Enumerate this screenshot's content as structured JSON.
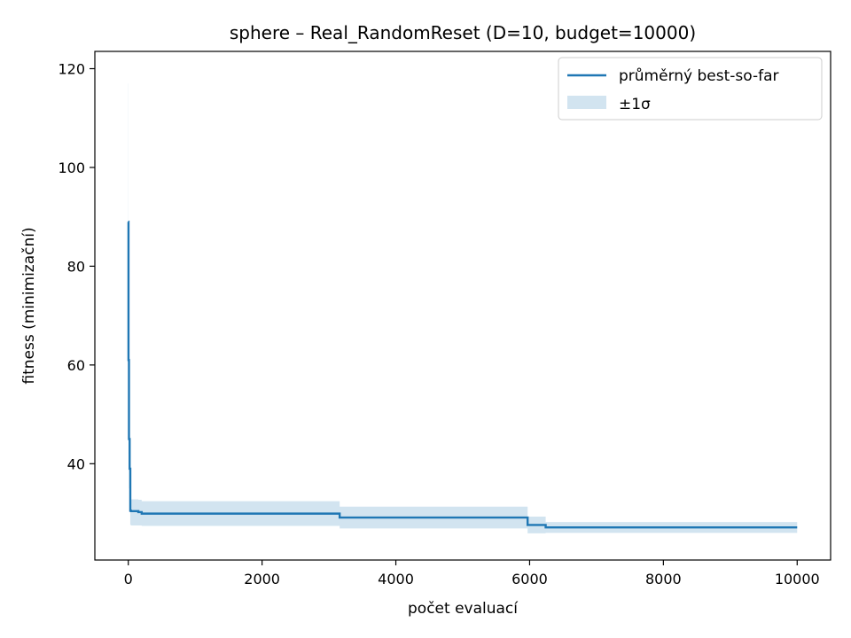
{
  "chart_data": {
    "type": "line",
    "title": "sphere – Real_RandomReset (D=10, budget=10000)",
    "xlabel": "počet evaluací",
    "ylabel": "fitness (minimizační)",
    "xlim": [
      -500,
      10500
    ],
    "ylim": [
      20.5,
      123.5
    ],
    "xticks": [
      0,
      2000,
      4000,
      6000,
      8000,
      10000
    ],
    "yticks": [
      40,
      60,
      80,
      100,
      120
    ],
    "grid": false,
    "legend_position": "top-right",
    "series_color": "#1f77b4",
    "band_color": "#1f77b4",
    "series": [
      {
        "name": "průměrný best-so-far",
        "x": [
          0,
          3,
          10,
          20,
          30,
          40,
          150,
          200,
          3150,
          3160,
          5960,
          5970,
          6230,
          6240,
          10000
        ],
        "y": [
          89,
          61,
          45,
          39,
          30.5,
          30.4,
          30.2,
          29.9,
          29.9,
          29.1,
          29.1,
          27.6,
          27.6,
          27.1,
          27.1
        ]
      }
    ],
    "band": {
      "name": "±1σ",
      "x": [
        0,
        3,
        10,
        20,
        30,
        40,
        150,
        200,
        3150,
        3160,
        5960,
        5970,
        6230,
        6240,
        10000
      ],
      "upper": [
        117,
        80,
        55,
        45,
        33,
        32.8,
        32.7,
        32.4,
        32.4,
        31.3,
        31.3,
        29.3,
        29.3,
        28.2,
        28.2
      ],
      "lower": [
        61,
        42,
        35,
        33,
        27.6,
        27.5,
        27.5,
        27.4,
        27.4,
        26.9,
        26.9,
        25.9,
        25.9,
        26,
        26
      ]
    }
  }
}
